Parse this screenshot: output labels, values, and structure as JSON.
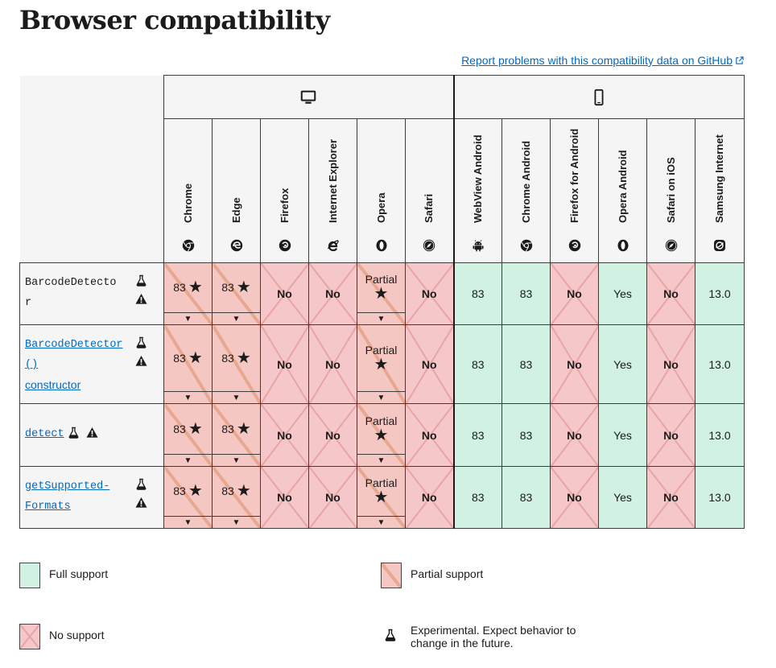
{
  "title": "Browser compatibility",
  "report_link": "Report problems with this compatibility data on GitHub",
  "platforms": {
    "desktop": "desktop-icon",
    "mobile": "mobile-icon"
  },
  "browsers": [
    {
      "name": "Chrome",
      "icon": "chrome-icon"
    },
    {
      "name": "Edge",
      "icon": "edge-icon"
    },
    {
      "name": "Firefox",
      "icon": "firefox-icon"
    },
    {
      "name": "Internet Explorer",
      "icon": "ie-icon"
    },
    {
      "name": "Opera",
      "icon": "opera-icon"
    },
    {
      "name": "Safari",
      "icon": "safari-icon"
    },
    {
      "name": "WebView Android",
      "icon": "android-icon"
    },
    {
      "name": "Chrome Android",
      "icon": "chrome-icon"
    },
    {
      "name": "Firefox for Android",
      "icon": "firefox-icon"
    },
    {
      "name": "Opera Android",
      "icon": "opera-icon"
    },
    {
      "name": "Safari on iOS",
      "icon": "safari-icon"
    },
    {
      "name": "Samsung Internet",
      "icon": "samsung-icon"
    }
  ],
  "rows": [
    {
      "label_lines": [
        "BarcodeDetecto",
        "r"
      ],
      "link": false,
      "cells": [
        [
          "partial",
          "83"
        ],
        [
          "partial",
          "83"
        ],
        [
          "none",
          "No"
        ],
        [
          "none",
          "No"
        ],
        [
          "partial",
          "Partial"
        ],
        [
          "none",
          "No"
        ],
        [
          "full",
          "83"
        ],
        [
          "full",
          "83"
        ],
        [
          "none",
          "No"
        ],
        [
          "full",
          "Yes"
        ],
        [
          "none",
          "No"
        ],
        [
          "full",
          "13.0"
        ]
      ]
    },
    {
      "label_lines": [
        "BarcodeDetector",
        "()"
      ],
      "label_suffix": "constructor",
      "link": true,
      "cells": [
        [
          "partial",
          "83"
        ],
        [
          "partial",
          "83"
        ],
        [
          "none",
          "No"
        ],
        [
          "none",
          "No"
        ],
        [
          "partial",
          "Partial"
        ],
        [
          "none",
          "No"
        ],
        [
          "full",
          "83"
        ],
        [
          "full",
          "83"
        ],
        [
          "none",
          "No"
        ],
        [
          "full",
          "Yes"
        ],
        [
          "none",
          "No"
        ],
        [
          "full",
          "13.0"
        ]
      ]
    },
    {
      "label_lines": [
        "detect"
      ],
      "link": true,
      "cells": [
        [
          "partial",
          "83"
        ],
        [
          "partial",
          "83"
        ],
        [
          "none",
          "No"
        ],
        [
          "none",
          "No"
        ],
        [
          "partial",
          "Partial"
        ],
        [
          "none",
          "No"
        ],
        [
          "full",
          "83"
        ],
        [
          "full",
          "83"
        ],
        [
          "none",
          "No"
        ],
        [
          "full",
          "Yes"
        ],
        [
          "none",
          "No"
        ],
        [
          "full",
          "13.0"
        ]
      ]
    },
    {
      "label_lines": [
        "getSupported-",
        "Formats"
      ],
      "link": true,
      "cells": [
        [
          "partial",
          "83"
        ],
        [
          "partial",
          "83"
        ],
        [
          "none",
          "No"
        ],
        [
          "none",
          "No"
        ],
        [
          "partial",
          "Partial"
        ],
        [
          "none",
          "No"
        ],
        [
          "full",
          "83"
        ],
        [
          "full",
          "83"
        ],
        [
          "none",
          "No"
        ],
        [
          "full",
          "Yes"
        ],
        [
          "none",
          "No"
        ],
        [
          "full",
          "13.0"
        ]
      ]
    }
  ],
  "legend": {
    "full": "Full support",
    "partial": "Partial support",
    "none": "No support",
    "experimental": "Experimental. Expect behavior to change in the future."
  }
}
